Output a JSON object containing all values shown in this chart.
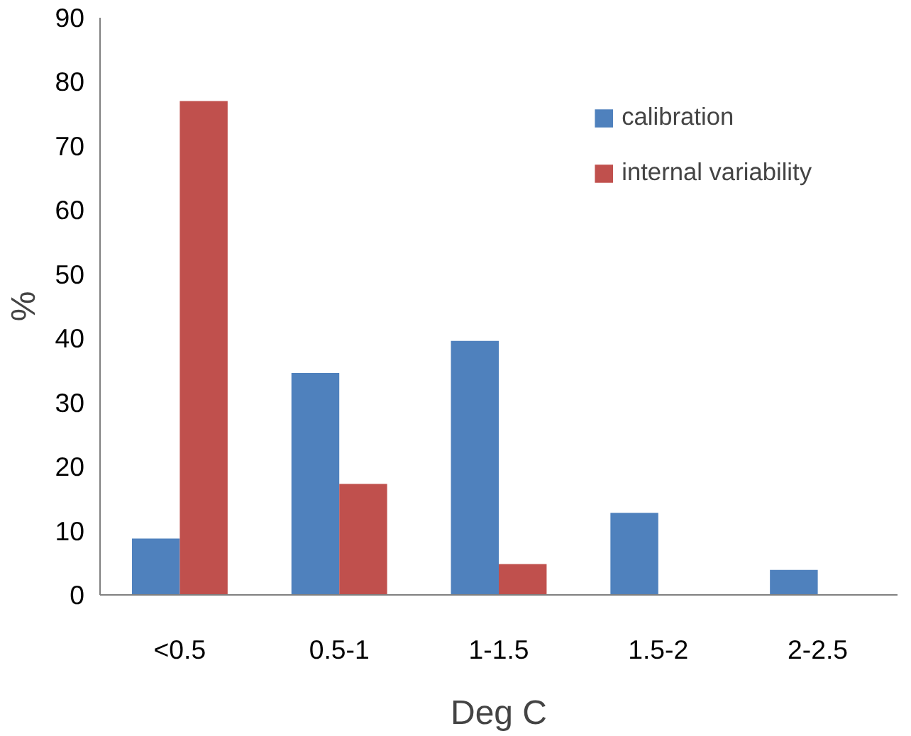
{
  "chart_data": {
    "type": "bar",
    "xlabel": "Deg C",
    "ylabel": "%",
    "categories": [
      "<0.5",
      "0.5-1",
      "1-1.5",
      "1.5-2",
      "2-2.5"
    ],
    "series": [
      {
        "name": "calibration",
        "color": "#4f81bd",
        "values": [
          8.8,
          34.6,
          39.6,
          12.8,
          3.9
        ]
      },
      {
        "name": "internal variability",
        "color": "#c0504d",
        "values": [
          77,
          17.3,
          4.8,
          0,
          0
        ]
      }
    ],
    "ylim": [
      0,
      90
    ],
    "yticks": [
      0,
      10,
      20,
      30,
      40,
      50,
      60,
      70,
      80,
      90
    ],
    "grid": false,
    "legend": "top right"
  }
}
